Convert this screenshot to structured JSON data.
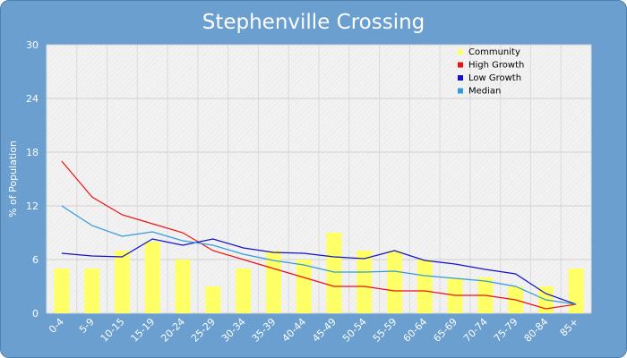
{
  "chart_data": {
    "type": "bar",
    "title": "Stephenville Crossing",
    "xlabel": "",
    "ylabel": "% of Population",
    "ylim": [
      0,
      30
    ],
    "yticks": [
      "0",
      "6",
      "12",
      "18",
      "24",
      "30"
    ],
    "categories": [
      "0-4",
      "5-9",
      "10-15",
      "15-19",
      "20-24",
      "25-29",
      "30-34",
      "35-39",
      "40-44",
      "45-49",
      "50-54",
      "55-59",
      "60-64",
      "65-69",
      "70-74",
      "75-79",
      "80-84",
      "85+"
    ],
    "grid": true,
    "legend_position": "top-right",
    "series": [
      {
        "name": "Community",
        "kind": "bar",
        "color": "#ffff66",
        "values": [
          5,
          5,
          7,
          8,
          6,
          3,
          5,
          7,
          6,
          9,
          7,
          7,
          6,
          4,
          4,
          3,
          3,
          5
        ]
      },
      {
        "name": "High Growth",
        "kind": "line",
        "color": "#ee1111",
        "values": [
          17,
          13,
          11,
          10,
          9,
          7,
          6,
          5,
          4,
          3,
          3,
          2.5,
          2.5,
          2,
          2,
          1.5,
          0.5,
          1
        ]
      },
      {
        "name": "Low Growth",
        "kind": "line",
        "color": "#1111cc",
        "values": [
          6.7,
          6.4,
          6.3,
          8.3,
          7.6,
          8.3,
          7.3,
          6.8,
          6.7,
          6.3,
          6.1,
          7,
          5.9,
          5.5,
          4.9,
          4.4,
          2.2,
          1
        ]
      },
      {
        "name": "Median",
        "kind": "line",
        "color": "#3399dd",
        "values": [
          12,
          9.8,
          8.6,
          9.1,
          8.1,
          7.6,
          6.6,
          5.9,
          5.4,
          4.6,
          4.6,
          4.7,
          4.2,
          3.9,
          3.6,
          3,
          1.5,
          1
        ]
      }
    ]
  }
}
